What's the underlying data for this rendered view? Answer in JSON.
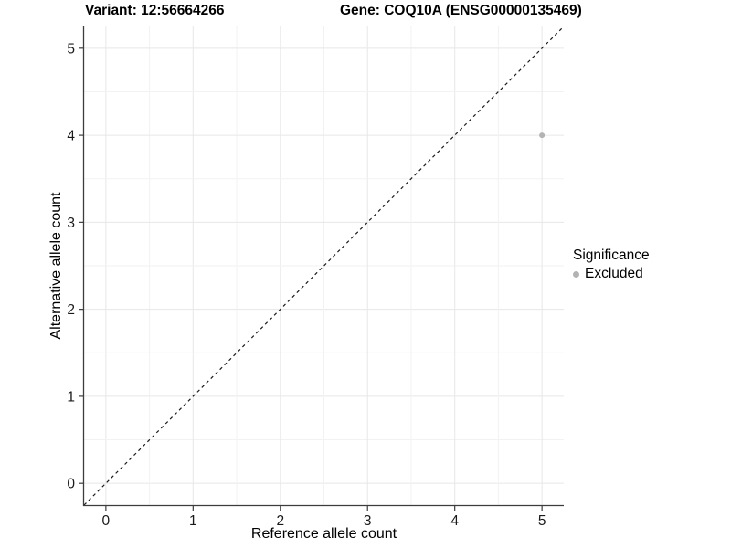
{
  "chart_data": {
    "type": "scatter",
    "title_left": "Variant: 12:56664266",
    "title_right": "Gene: COQ10A (ENSG00000135469)",
    "xlabel": "Reference allele count",
    "ylabel": "Alternative allele count",
    "xlim": [
      -0.25,
      5.25
    ],
    "ylim": [
      -0.25,
      5.25
    ],
    "x_ticks": [
      0,
      1,
      2,
      3,
      4,
      5
    ],
    "y_ticks": [
      0,
      1,
      2,
      3,
      4,
      5
    ],
    "grid": {
      "major_step": 1,
      "minor_step": 0.5,
      "visible": true
    },
    "reference_line": {
      "style": "dashed",
      "from": [
        -0.25,
        -0.25
      ],
      "to": [
        5.25,
        5.25
      ],
      "color": "#1a1a1a",
      "meaning": "identity line y = x"
    },
    "series": [
      {
        "name": "Excluded",
        "color": "#b3b3b3",
        "points": [
          {
            "x": 5,
            "y": 4
          }
        ]
      }
    ],
    "legend": {
      "title": "Significance",
      "position": "right",
      "items": [
        {
          "label": "Excluded",
          "color": "#b3b3b3",
          "marker": "circle"
        }
      ]
    }
  },
  "style": {
    "grid_major": "#e7e7e7",
    "grid_minor": "#f2f2f2",
    "axis_line": "#3c3c3c",
    "tick_label_color": "#1a1a1a",
    "point_color": "#b3b3b3",
    "background": "#ffffff"
  }
}
